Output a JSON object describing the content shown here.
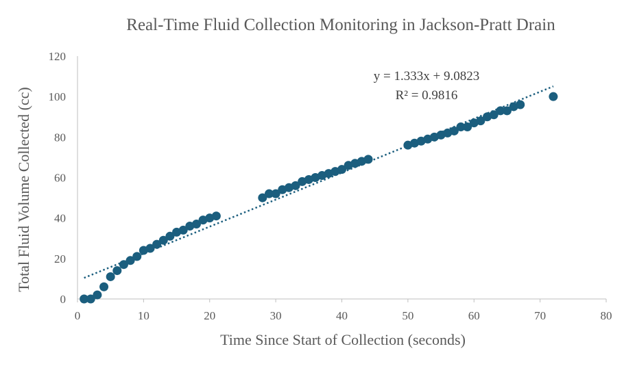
{
  "chart_data": {
    "type": "scatter",
    "title": "Real-Time Fluid Collection Monitoring in Jackson-Pratt Drain",
    "xlabel": "Time Since Start of Collection (seconds)",
    "ylabel": "Total Fluid Volume Collected (cc)",
    "xlim": [
      0,
      80
    ],
    "ylim": [
      0,
      120
    ],
    "xticks": [
      0,
      10,
      20,
      30,
      40,
      50,
      60,
      70,
      80
    ],
    "yticks": [
      0,
      20,
      40,
      60,
      80,
      100,
      120
    ],
    "grid": false,
    "legend": "none",
    "marker_color": "#1b5e7e",
    "trendline": {
      "type": "linear",
      "slope": 1.333,
      "intercept": 9.0823,
      "x_range": [
        1,
        72
      ],
      "equation_label": "y = 1.333x + 9.0823",
      "r2_label": "R² = 0.9816",
      "color": "#1b5e7e",
      "style": "dotted"
    },
    "series": [
      {
        "x": [
          1,
          2,
          3,
          4,
          5,
          6,
          7,
          8,
          9,
          10,
          11,
          12,
          13,
          14,
          15,
          16,
          17,
          18,
          19,
          20,
          21,
          28,
          29,
          30,
          31,
          32,
          33,
          34,
          35,
          36,
          37,
          38,
          39,
          40,
          41,
          42,
          43,
          44,
          50,
          51,
          52,
          53,
          54,
          55,
          56,
          57,
          58,
          59,
          60,
          61,
          62,
          63,
          64,
          65,
          66,
          67,
          72
        ],
        "y": [
          0,
          0,
          2,
          6,
          11,
          14,
          17,
          19,
          21,
          24,
          25,
          27,
          29,
          31,
          33,
          34,
          36,
          37,
          39,
          40,
          41,
          50,
          52,
          52,
          54,
          55,
          56,
          58,
          59,
          60,
          61,
          62,
          63,
          64,
          66,
          67,
          68,
          69,
          76,
          77,
          78,
          79,
          80,
          81,
          82,
          83,
          85,
          85,
          87,
          88,
          90,
          91,
          93,
          93,
          95,
          96,
          100
        ]
      }
    ]
  }
}
